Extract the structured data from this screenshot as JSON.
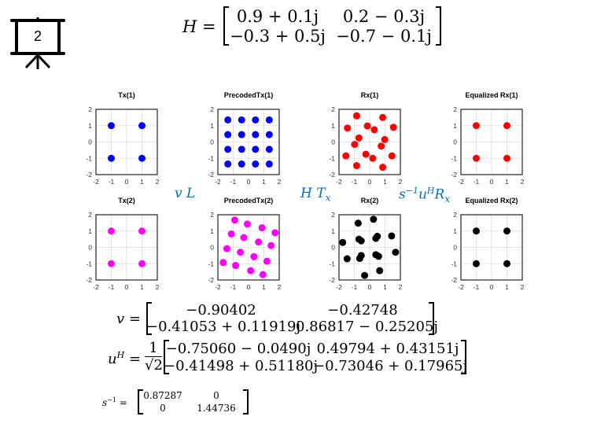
{
  "slide_number": "2",
  "H_eq": {
    "lhs": "H =",
    "cells": [
      "0.9 + 0.1j",
      "0.2 − 0.3j",
      "−0.3 + 0.5j",
      "−0.7 − 0.1j"
    ]
  },
  "labels": {
    "vL": "v L",
    "HTx": "H T",
    "HTx_sub": "x",
    "s": "s",
    "s_sup": "−1",
    "u": "u",
    "u_sup": "H",
    "R": "R",
    "R_sub": "x"
  },
  "v_eq": {
    "lhs": "v =",
    "cells": [
      "−0.90402",
      "−0.42748",
      "−0.41053 + 0.11919j",
      "0.86817 − 0.25205j"
    ]
  },
  "uH_eq": {
    "lhs_base": "u",
    "lhs_sup": "H",
    "equals": "=",
    "frac_num": "1",
    "frac_den": "√2",
    "cells": [
      "−0.75060 − 0.0490j",
      "0.49794 + 0.43151j",
      "−0.41498 + 0.51180j",
      "−0.73046 + 0.17965j"
    ]
  },
  "sinv_eq": {
    "lhs_base": "s",
    "lhs_sup": "−1",
    "equals": "=",
    "cells": [
      "0.87287",
      "0",
      "0",
      "1.44736"
    ]
  },
  "chart_data": [
    {
      "type": "scatter",
      "title": "Tx(1)",
      "color": "#0000ff",
      "xlim": [
        -2,
        2
      ],
      "ylim": [
        -2,
        2
      ],
      "ticks": [
        -2,
        -1,
        0,
        1,
        2
      ],
      "grid": true,
      "points": [
        [
          -1,
          1
        ],
        [
          1,
          1
        ],
        [
          -1,
          -1
        ],
        [
          1,
          -1
        ]
      ]
    },
    {
      "type": "scatter",
      "title": "PrecodedTx(1)",
      "color": "#0000ff",
      "xlim": [
        -2,
        2
      ],
      "ylim": [
        -2,
        2
      ],
      "ticks": [
        -2,
        -1,
        0,
        1,
        2
      ],
      "grid": true,
      "points": [
        [
          -1.35,
          1.35
        ],
        [
          -0.45,
          1.35
        ],
        [
          0.45,
          1.35
        ],
        [
          1.35,
          1.35
        ],
        [
          -1.35,
          0.45
        ],
        [
          -0.45,
          0.45
        ],
        [
          0.45,
          0.45
        ],
        [
          1.35,
          0.45
        ],
        [
          -1.35,
          -0.45
        ],
        [
          -0.45,
          -0.45
        ],
        [
          0.45,
          -0.45
        ],
        [
          1.35,
          -0.45
        ],
        [
          -1.35,
          -1.35
        ],
        [
          -0.45,
          -1.35
        ],
        [
          0.45,
          -1.35
        ],
        [
          1.35,
          -1.35
        ]
      ]
    },
    {
      "type": "scatter",
      "title": "Rx(1)",
      "color": "#ff0000",
      "xlim": [
        -2,
        2
      ],
      "ylim": [
        -2,
        2
      ],
      "ticks": [
        -2,
        -1,
        0,
        1,
        2
      ],
      "grid": true,
      "points": [
        [
          -0.85,
          1.6
        ],
        [
          0.85,
          1.5
        ],
        [
          -1.45,
          0.85
        ],
        [
          -0.15,
          0.98
        ],
        [
          0.3,
          0.75
        ],
        [
          1.55,
          0.9
        ],
        [
          -0.7,
          0.25
        ],
        [
          0.98,
          0.15
        ],
        [
          -0.98,
          -0.15
        ],
        [
          0.75,
          -0.25
        ],
        [
          -0.25,
          -0.75
        ],
        [
          0.2,
          -1.0
        ],
        [
          -1.55,
          -0.85
        ],
        [
          1.45,
          -0.85
        ],
        [
          -0.85,
          -1.45
        ],
        [
          0.85,
          -1.55
        ]
      ]
    },
    {
      "type": "scatter",
      "title": "Equalized Rx(1)",
      "color": "#ff0000",
      "xlim": [
        -2,
        2
      ],
      "ylim": [
        -2,
        2
      ],
      "ticks": [
        -2,
        -1,
        0,
        1,
        2
      ],
      "grid": true,
      "points": [
        [
          -1,
          1
        ],
        [
          1,
          1
        ],
        [
          -1,
          -1
        ],
        [
          1,
          -1
        ]
      ]
    },
    {
      "type": "scatter",
      "title": "Tx(2)",
      "color": "#ff00ff",
      "xlim": [
        -2,
        2
      ],
      "ylim": [
        -2,
        2
      ],
      "ticks": [
        -2,
        -1,
        0,
        1,
        2
      ],
      "grid": true,
      "points": [
        [
          -1,
          1
        ],
        [
          1,
          1
        ],
        [
          -1,
          -1
        ],
        [
          1,
          -1
        ]
      ]
    },
    {
      "type": "scatter",
      "title": "PrecodedTx(2)",
      "color": "#ff00ff",
      "xlim": [
        -2,
        2
      ],
      "ylim": [
        -2,
        2
      ],
      "ticks": [
        -2,
        -1,
        0,
        1,
        2
      ],
      "grid": true,
      "points": [
        [
          -0.9,
          1.67
        ],
        [
          -0.08,
          1.43
        ],
        [
          0.88,
          1.2
        ],
        [
          1.73,
          0.9
        ],
        [
          -1.12,
          0.82
        ],
        [
          -0.31,
          0.6
        ],
        [
          0.65,
          0.33
        ],
        [
          1.47,
          0.11
        ],
        [
          -1.41,
          -0.08
        ],
        [
          -0.53,
          -0.3
        ],
        [
          0.35,
          -0.57
        ],
        [
          1.2,
          -0.85
        ],
        [
          -1.65,
          -0.93
        ],
        [
          -0.84,
          -1.11
        ],
        [
          0.14,
          -1.43
        ],
        [
          0.94,
          -1.67
        ]
      ]
    },
    {
      "type": "scatter",
      "title": "Rx(2)",
      "color": "#000000",
      "xlim": [
        -2,
        2
      ],
      "ylim": [
        -2,
        2
      ],
      "ticks": [
        -2,
        -1,
        0,
        1,
        2
      ],
      "grid": true,
      "points": [
        [
          -0.75,
          1.48
        ],
        [
          0.25,
          1.72
        ],
        [
          -1.76,
          0.3
        ],
        [
          -0.7,
          0.5
        ],
        [
          -0.55,
          0.4
        ],
        [
          0.4,
          0.55
        ],
        [
          0.5,
          0.68
        ],
        [
          1.43,
          0.7
        ],
        [
          -1.47,
          -0.7
        ],
        [
          -0.55,
          -0.5
        ],
        [
          -0.65,
          -0.68
        ],
        [
          0.4,
          -0.45
        ],
        [
          0.58,
          -0.55
        ],
        [
          1.69,
          -0.3
        ],
        [
          0.65,
          -1.43
        ],
        [
          -0.33,
          -1.72
        ]
      ]
    },
    {
      "type": "scatter",
      "title": "Equalized Rx(2)",
      "color": "#000000",
      "xlim": [
        -2,
        2
      ],
      "ylim": [
        -2,
        2
      ],
      "ticks": [
        -2,
        -1,
        0,
        1,
        2
      ],
      "grid": true,
      "points": [
        [
          -1,
          1
        ],
        [
          1,
          1
        ],
        [
          -1,
          -1
        ],
        [
          1,
          -1
        ]
      ]
    }
  ]
}
